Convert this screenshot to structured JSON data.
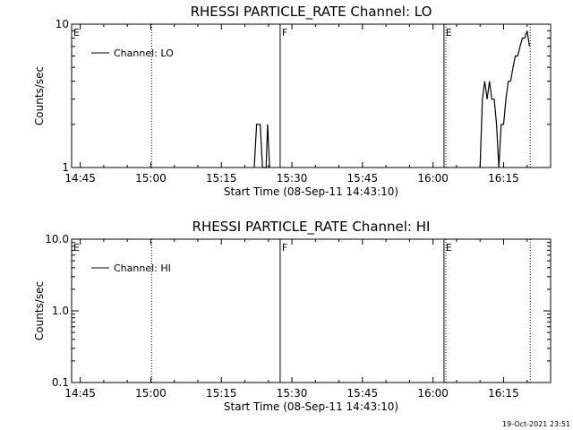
{
  "timestamp": "19-Oct-2021 23:51",
  "chart_data": [
    {
      "type": "line",
      "title": "RHESSI PARTICLE_RATE Channel: LO",
      "xlabel": "Start Time (08-Sep-11 14:43:10)",
      "ylabel": "Counts/sec",
      "yscale": "log",
      "ylim": [
        1,
        10
      ],
      "ytick_labels": [
        "1",
        "10"
      ],
      "xlim": [
        "14:43:10",
        "16:25:00"
      ],
      "xtick_labels": [
        "14:45",
        "15:00",
        "15:15",
        "15:30",
        "15:45",
        "16:00",
        "16:15"
      ],
      "legend": {
        "label": "Channel: LO",
        "placement": "top-left"
      },
      "markers": [
        {
          "label": "E",
          "time": "14:43:10",
          "style": "solid"
        },
        {
          "label": "",
          "time": "15:00:10",
          "style": "dotted"
        },
        {
          "label": "F",
          "time": "15:27:30",
          "style": "solid"
        },
        {
          "label": "E",
          "time": "16:02:20",
          "style": "solid"
        },
        {
          "label": "",
          "time": "16:02:45",
          "style": "dotted"
        },
        {
          "label": "",
          "time": "16:20:40",
          "style": "dotted"
        }
      ],
      "series": [
        {
          "name": "Channel: LO",
          "segments": [
            [
              [
                "15:22:00",
                1
              ],
              [
                "15:22:30",
                2
              ],
              [
                "15:23:15",
                2
              ],
              [
                "15:23:45",
                1
              ],
              [
                "15:24:30",
                1
              ],
              [
                "15:24:50",
                2
              ],
              [
                "15:25:15",
                1
              ]
            ],
            [
              [
                "16:10:00",
                1
              ],
              [
                "16:10:30",
                3
              ],
              [
                "16:11:00",
                4
              ],
              [
                "16:11:30",
                3
              ],
              [
                "16:12:00",
                4
              ],
              [
                "16:12:30",
                3
              ],
              [
                "16:13:00",
                3
              ],
              [
                "16:13:30",
                2
              ],
              [
                "16:14:00",
                1
              ],
              [
                "16:14:30",
                2
              ],
              [
                "16:15:00",
                2
              ],
              [
                "16:15:30",
                3
              ],
              [
                "16:16:00",
                4
              ],
              [
                "16:16:30",
                4
              ],
              [
                "16:17:00",
                5
              ],
              [
                "16:17:30",
                6
              ],
              [
                "16:18:00",
                6
              ],
              [
                "16:18:30",
                7
              ],
              [
                "16:19:00",
                8
              ],
              [
                "16:19:30",
                8
              ],
              [
                "16:20:00",
                9
              ],
              [
                "16:20:30",
                7
              ]
            ]
          ]
        }
      ]
    },
    {
      "type": "line",
      "title": "RHESSI PARTICLE_RATE Channel: HI",
      "xlabel": "Start Time (08-Sep-11 14:43:10)",
      "ylabel": "Counts/sec",
      "yscale": "log",
      "ylim": [
        0.1,
        10
      ],
      "ytick_labels": [
        "0.1",
        "1.0",
        "10.0"
      ],
      "xlim": [
        "14:43:10",
        "16:25:00"
      ],
      "xtick_labels": [
        "14:45",
        "15:00",
        "15:15",
        "15:30",
        "15:45",
        "16:00",
        "16:15"
      ],
      "legend": {
        "label": "Channel: HI",
        "placement": "top-left"
      },
      "markers": [
        {
          "label": "E",
          "time": "14:43:10",
          "style": "solid"
        },
        {
          "label": "",
          "time": "15:00:10",
          "style": "dotted"
        },
        {
          "label": "F",
          "time": "15:27:30",
          "style": "solid"
        },
        {
          "label": "E",
          "time": "16:02:20",
          "style": "solid"
        },
        {
          "label": "",
          "time": "16:02:45",
          "style": "dotted"
        },
        {
          "label": "",
          "time": "16:20:40",
          "style": "dotted"
        }
      ],
      "series": [
        {
          "name": "Channel: HI",
          "segments": []
        }
      ]
    }
  ]
}
